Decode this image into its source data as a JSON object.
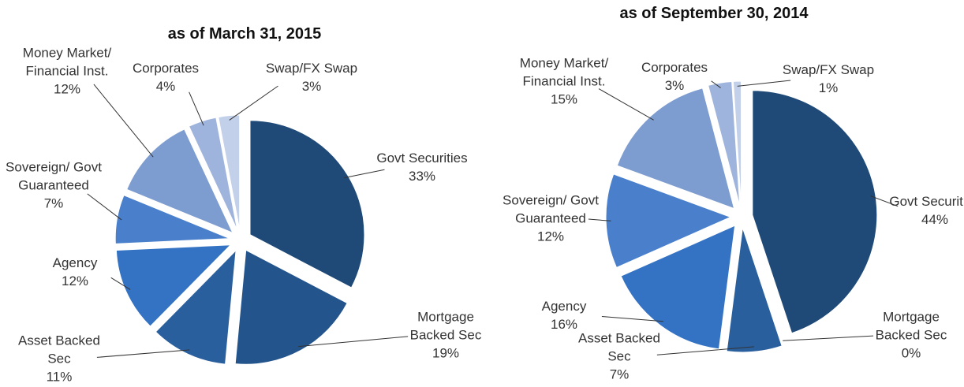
{
  "chart_data": [
    {
      "type": "pie",
      "title": "as of March 31, 2015",
      "categories": [
        "Govt Securities",
        "Mortgage Backed Sec",
        "Asset Backed Sec",
        "Agency",
        "Sovereign/ Govt Guaranteed",
        "Money Market/ Financial Inst.",
        "Corporates",
        "Swap/FX Swap"
      ],
      "values": [
        33,
        19,
        11,
        12,
        7,
        12,
        4,
        3
      ],
      "value_labels": [
        "33%",
        "19%",
        "11%",
        "12%",
        "7%",
        "12%",
        "4%",
        "3%"
      ],
      "colors": [
        "#1f4a78",
        "#24548c",
        "#2a5f9e",
        "#3473c4",
        "#4a80cb",
        "#7d9ccf",
        "#9fb4dc",
        "#c3d0ea"
      ]
    },
    {
      "type": "pie",
      "title": "as of September 30, 2014",
      "categories": [
        "Govt Securities",
        "Mortgage Backed Sec",
        "Asset Backed Sec",
        "Agency",
        "Sovereign/ Govt Guaranteed",
        "Money Market/ Financial Inst.",
        "Corporates",
        "Swap/FX Swap"
      ],
      "values": [
        44,
        0,
        7,
        16,
        12,
        15,
        3,
        1
      ],
      "value_labels": [
        "44%",
        "0%",
        "7%",
        "16%",
        "12%",
        "15%",
        "3%",
        "1%"
      ],
      "colors": [
        "#1f4a78",
        "#24548c",
        "#2a5f9e",
        "#3473c4",
        "#4a80cb",
        "#7d9ccf",
        "#9fb4dc",
        "#c3d0ea"
      ]
    }
  ]
}
